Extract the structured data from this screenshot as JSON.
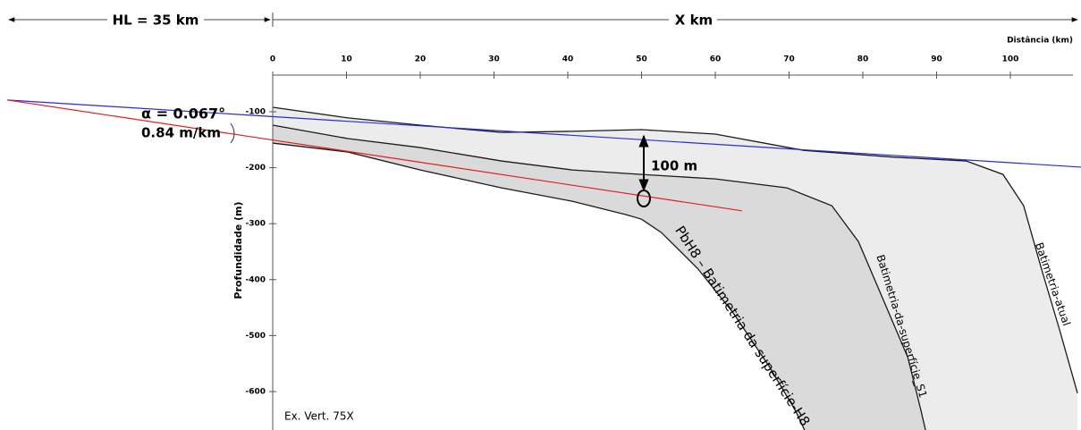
{
  "chart_data": {
    "type": "line",
    "x_label": "Distância (km)",
    "y_label": "Profundidade (m)",
    "xlim": [
      -36,
      110
    ],
    "ylim": [
      -670,
      -35
    ],
    "xticks": [
      0,
      10,
      20,
      30,
      40,
      50,
      60,
      70,
      80,
      90,
      100
    ],
    "yticks": [
      -100,
      -200,
      -300,
      -400,
      -500,
      -600
    ],
    "annotations": {
      "hl": "HL = 35 km",
      "x_span": "X km",
      "angle": "α = 0.067°",
      "gradient": "0.84 m/km",
      "offset": "100 m",
      "exaggeration": "Ex. Vert. 75X"
    },
    "series": [
      {
        "name": "Batimetria-atual",
        "color": "#1a1a1a",
        "fill": "#ececec",
        "x": [
          0,
          10.2,
          20,
          31,
          40.6,
          50,
          60,
          72,
          84,
          94,
          99,
          101.8,
          104.2,
          106.7,
          109.1
        ],
        "values": [
          -92,
          -111,
          -124,
          -137,
          -135,
          -132,
          -140,
          -169,
          -181,
          -188,
          -212,
          -268,
          -380,
          -491,
          -603
        ]
      },
      {
        "name": "Batimetria-da-superfície_S1",
        "color": "#1a1a1a",
        "fill": "#dadada",
        "x": [
          0,
          10.2,
          20,
          31,
          40.6,
          50,
          60,
          69.7,
          75.8,
          79.4,
          83,
          86.1,
          87.9,
          88.5
        ],
        "values": [
          -124,
          -148,
          -164,
          -188,
          -204,
          -212,
          -220,
          -236,
          -268,
          -332,
          -443,
          -539,
          -635,
          -669
        ]
      },
      {
        "name": "PbH8 – Batimetria da superfície-H8",
        "color": "#1a1a1a",
        "fill": "#ffffff",
        "x": [
          0,
          10.2,
          20,
          31,
          40.6,
          47.9,
          50,
          52.7,
          57.6,
          62.4,
          67.3,
          70.9,
          72.1
        ],
        "values": [
          -156,
          -172,
          -204,
          -236,
          -260,
          -284,
          -292,
          -316,
          -380,
          -459,
          -555,
          -635,
          -669
        ]
      },
      {
        "color": "#2b2bd6",
        "x": [
          -36,
          109.6
        ],
        "values": [
          -79,
          -199
        ]
      },
      {
        "color": "#e02020",
        "x": [
          -36,
          63.6
        ],
        "values": [
          -79,
          -277
        ]
      }
    ]
  }
}
